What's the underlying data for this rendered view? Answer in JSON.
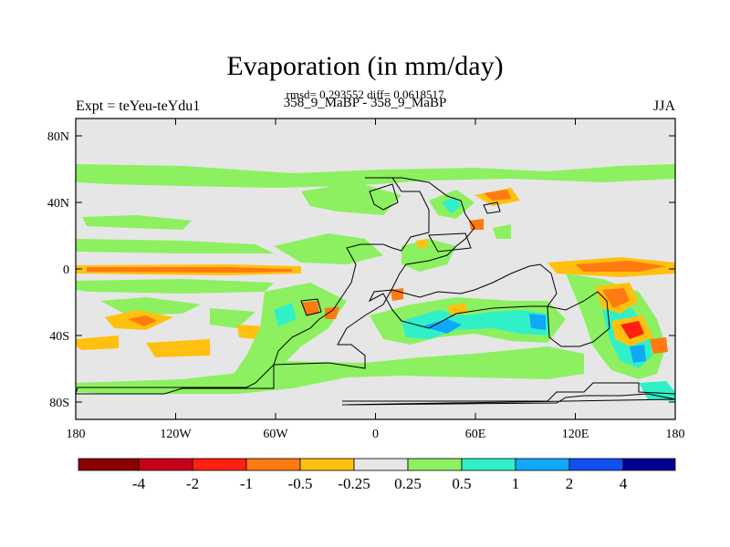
{
  "header": {
    "title": "Evaporation (in mm/day)",
    "stats": "rmsd= 0.293552 diff= 0.0618517",
    "experiment": "Expt = teYeu-teYdu1",
    "pair": "358_9_MaBP - 358_9_MaBP",
    "season": "JJA"
  },
  "axes": {
    "lat_labels": [
      "80N",
      "40N",
      "0",
      "40S",
      "80S"
    ],
    "lon_labels": [
      "180",
      "120W",
      "60W",
      "0",
      "60E",
      "120E",
      "180"
    ]
  },
  "colorbar": {
    "colors": [
      "#8b0000",
      "#c8001a",
      "#ff2010",
      "#ff7a10",
      "#ffc010",
      "#e6e6e6",
      "#8cf060",
      "#30f0c8",
      "#10a8f8",
      "#1050f0",
      "#000090"
    ],
    "labels": [
      "-4",
      "-2",
      "-1",
      "-0.5",
      "-0.25",
      "0.25",
      "0.5",
      "1",
      "2",
      "4"
    ]
  },
  "colors": {
    "background": "#e6e6e6",
    "coast": "#000000"
  }
}
